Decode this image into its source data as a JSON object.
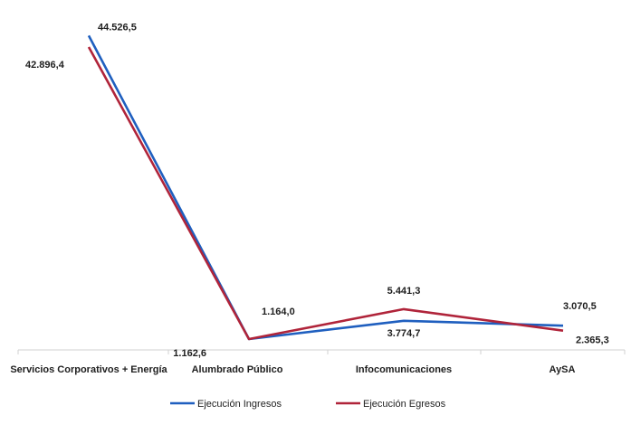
{
  "chart_data": {
    "type": "line",
    "title": "",
    "xlabel": "",
    "ylabel": "",
    "categories": [
      "Servicios Corporativos + Energía",
      "Alumbrado Público",
      "Infocomunicaciones",
      "AySA"
    ],
    "series": [
      {
        "name": "Ejecución Ingresos",
        "values": [
          44526.5,
          1162.6,
          3774.7,
          3070.5
        ],
        "labels": [
          "44.526,5",
          "1.162,6",
          "3.774,7",
          "3.070,5"
        ],
        "color": "#1f5fbf"
      },
      {
        "name": "Ejecución Egresos",
        "values": [
          42896.4,
          1164.0,
          5441.3,
          2365.3
        ],
        "labels": [
          "42.896,4",
          "1.164,0",
          "5.441,3",
          "2.365,3"
        ],
        "color": "#b0243a"
      }
    ],
    "ylim": [
      0,
      46000
    ],
    "grid": false,
    "legend": "bottom"
  }
}
